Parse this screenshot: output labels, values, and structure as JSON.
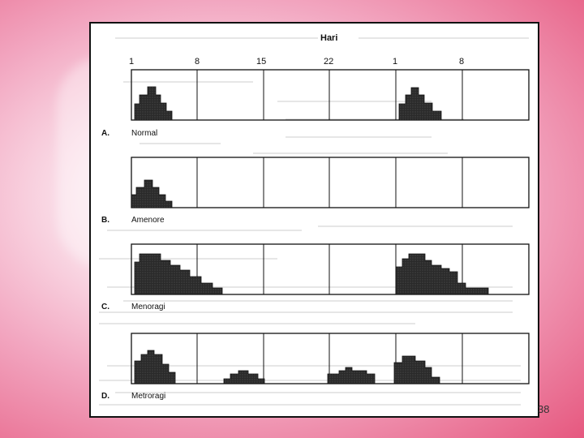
{
  "header": {
    "title": "Hari"
  },
  "day_labels": [
    "1",
    "8",
    "15",
    "22",
    "1",
    "8"
  ],
  "rows": [
    {
      "letter": "A.",
      "label": "Normal"
    },
    {
      "letter": "B.",
      "label": "Amenore"
    },
    {
      "letter": "C.",
      "label": "Menoragi"
    },
    {
      "letter": "D.",
      "label": "Metroragi"
    }
  ],
  "page_number": "38",
  "colors": {
    "background": "#e6587f",
    "bleeding_fill": "#222222"
  }
}
